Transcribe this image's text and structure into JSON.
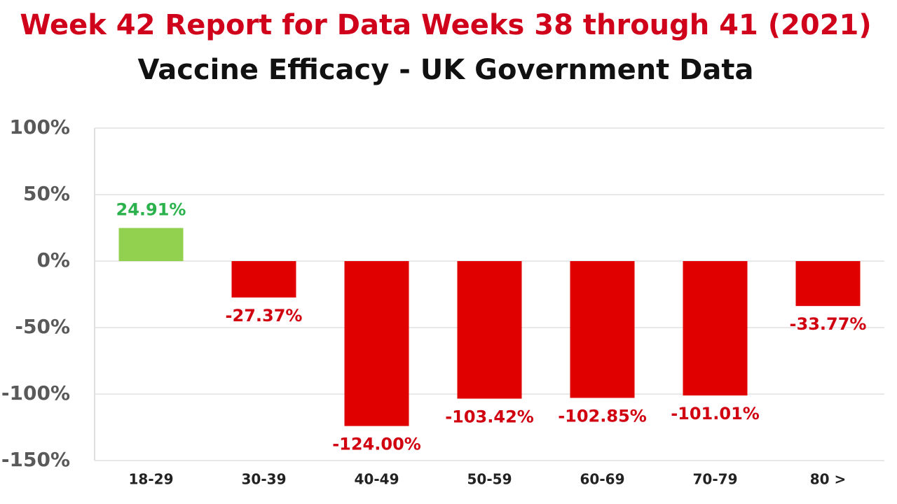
{
  "chart_data": {
    "type": "bar",
    "title": "Week 42 Report for  Data Weeks 38 through 41 (2021)",
    "subtitle": "Vaccine Efficacy - UK Government Data",
    "categories": [
      "18-29",
      "30-39",
      "40-49",
      "50-59",
      "60-69",
      "70-79",
      "80 >"
    ],
    "values": [
      24.91,
      -27.37,
      -124.0,
      -103.42,
      -102.85,
      -101.01,
      -33.77
    ],
    "value_labels": [
      "24.91%",
      "-27.37%",
      "-124.00%",
      "-103.42%",
      "-102.85%",
      "-101.01%",
      "-33.77%"
    ],
    "colors": [
      "#92d050",
      "#e00000",
      "#e00000",
      "#e00000",
      "#e00000",
      "#e00000",
      "#e00000"
    ],
    "label_colors": [
      "#2bb24c",
      "#d00010",
      "#d00010",
      "#d00010",
      "#d00010",
      "#d00010",
      "#d00010"
    ],
    "ylim": [
      -150,
      100
    ],
    "yticks": [
      {
        "value": -150,
        "label": "-150%"
      },
      {
        "value": -100,
        "label": "-100%"
      },
      {
        "value": -50,
        "label": "-50%"
      },
      {
        "value": 0,
        "label": "0%"
      },
      {
        "value": 50,
        "label": "50%"
      },
      {
        "value": 100,
        "label": "100%"
      }
    ],
    "grid": true
  }
}
